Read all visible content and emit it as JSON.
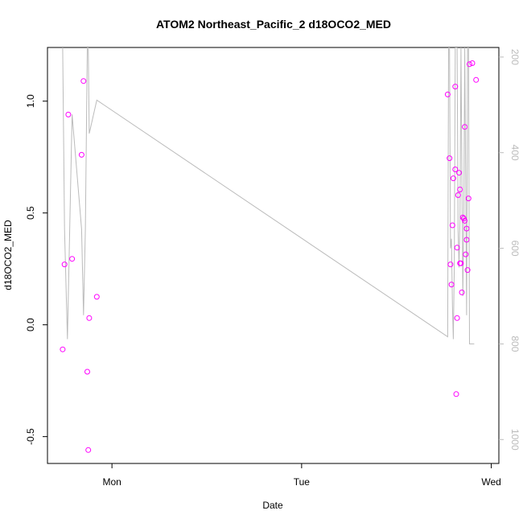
{
  "chart_data": {
    "type": "scatter",
    "title": "ATOM2 Northeast_Pacific_2 d18OCO2_MED",
    "xlabel": "Date",
    "ylabel": "d18OCO2_MED",
    "x_ticks": [
      "Mon",
      "Tue",
      "Wed"
    ],
    "ylim": [
      -0.62,
      1.24
    ],
    "y_ticks": [
      -0.5,
      0.0,
      0.5,
      1.0
    ],
    "y2_ticks": [
      200,
      400,
      600,
      800,
      1000
    ],
    "y2_range": [
      180,
      1050
    ],
    "x_range_days": [
      -0.34,
      2.04
    ],
    "point_color": "#ff00ff",
    "line_color": "#bbbbbb",
    "points": [
      [
        -0.26,
        -0.11
      ],
      [
        -0.25,
        0.27
      ],
      [
        -0.23,
        0.94
      ],
      [
        -0.21,
        0.295
      ],
      [
        -0.16,
        0.76
      ],
      [
        -0.15,
        1.09
      ],
      [
        -0.13,
        -0.21
      ],
      [
        -0.125,
        -0.56
      ],
      [
        -0.12,
        0.03
      ],
      [
        -0.08,
        0.125
      ],
      [
        1.77,
        1.03
      ],
      [
        1.78,
        0.745
      ],
      [
        1.785,
        0.27
      ],
      [
        1.79,
        0.18
      ],
      [
        1.795,
        0.445
      ],
      [
        1.8,
        0.655
      ],
      [
        1.81,
        1.065
      ],
      [
        1.81,
        0.695
      ],
      [
        1.815,
        -0.31
      ],
      [
        1.82,
        0.03
      ],
      [
        1.82,
        0.345
      ],
      [
        1.825,
        0.58
      ],
      [
        1.83,
        0.68
      ],
      [
        1.835,
        0.605
      ],
      [
        1.835,
        0.275
      ],
      [
        1.84,
        0.275
      ],
      [
        1.845,
        0.145
      ],
      [
        1.85,
        0.48
      ],
      [
        1.855,
        0.475
      ],
      [
        1.86,
        0.885
      ],
      [
        1.86,
        0.465
      ],
      [
        1.865,
        0.315
      ],
      [
        1.87,
        0.38
      ],
      [
        1.87,
        0.43
      ],
      [
        1.875,
        0.245
      ],
      [
        1.88,
        0.565
      ],
      [
        1.885,
        1.165
      ],
      [
        1.9,
        1.17
      ],
      [
        1.92,
        1.095
      ]
    ],
    "line": [
      [
        -0.26,
        180
      ],
      [
        -0.25,
        560
      ],
      [
        -0.235,
        790
      ],
      [
        -0.21,
        320
      ],
      [
        -0.16,
        560
      ],
      [
        -0.15,
        740
      ],
      [
        -0.14,
        560
      ],
      [
        -0.13,
        180
      ],
      [
        -0.125,
        180
      ],
      [
        -0.12,
        360
      ],
      [
        -0.08,
        290
      ],
      [
        1.77,
        785
      ],
      [
        1.775,
        180
      ],
      [
        1.78,
        180
      ],
      [
        1.785,
        600
      ],
      [
        1.79,
        580
      ],
      [
        1.795,
        720
      ],
      [
        1.8,
        790
      ],
      [
        1.805,
        640
      ],
      [
        1.81,
        180
      ],
      [
        1.815,
        180
      ],
      [
        1.82,
        180
      ],
      [
        1.825,
        560
      ],
      [
        1.83,
        640
      ],
      [
        1.835,
        540
      ],
      [
        1.84,
        180
      ],
      [
        1.85,
        700
      ],
      [
        1.855,
        540
      ],
      [
        1.86,
        180
      ],
      [
        1.87,
        740
      ],
      [
        1.875,
        180
      ],
      [
        1.88,
        180
      ],
      [
        1.885,
        800
      ],
      [
        1.89,
        800
      ],
      [
        1.91,
        800
      ]
    ]
  }
}
